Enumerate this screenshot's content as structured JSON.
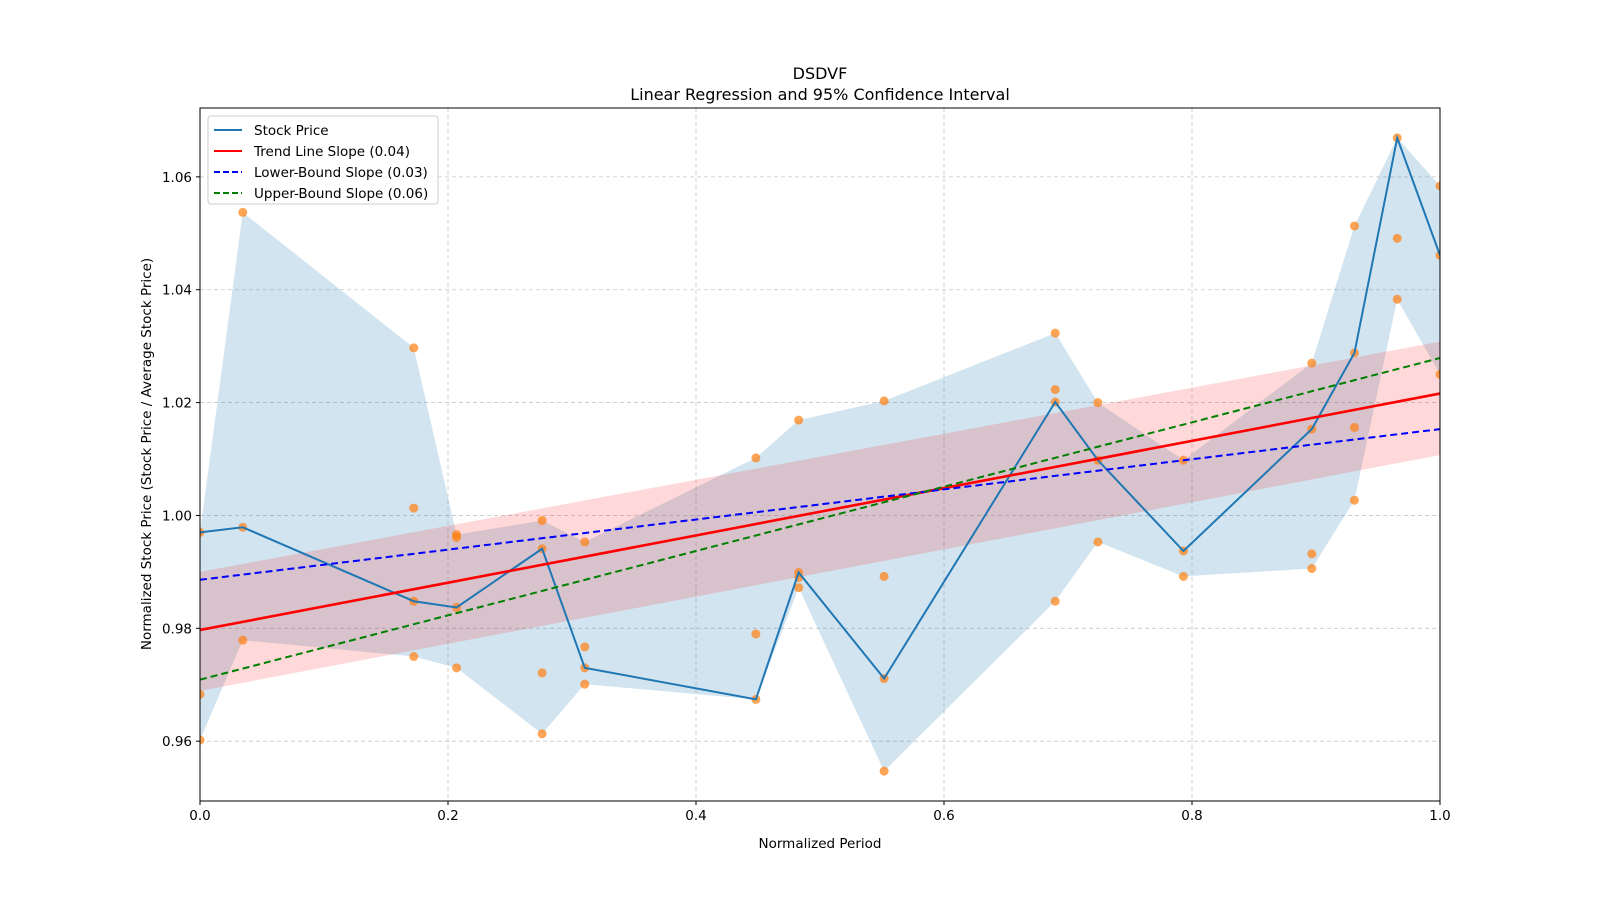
{
  "chart_data": {
    "type": "line",
    "title": "DSDVF",
    "subtitle": "Linear Regression and 95% Confidence Interval",
    "xlabel": "Normalized Period",
    "ylabel": "Normalized Stock Price (Stock Price / Average Stock Price)",
    "xlim": [
      0.0,
      1.0
    ],
    "ylim": [
      0.9494,
      1.0722
    ],
    "grid": true,
    "legend_position": "top-left",
    "x_ticks": [
      "0.0",
      "0.2",
      "0.4",
      "0.6",
      "0.8",
      "1.0"
    ],
    "x_tick_values": [
      0.0,
      0.2,
      0.4,
      0.6,
      0.8,
      1.0
    ],
    "y_ticks": [
      "0.96",
      "0.98",
      "1.00",
      "1.02",
      "1.04",
      "1.06"
    ],
    "y_tick_values": [
      0.96,
      0.98,
      1.0,
      1.02,
      1.04,
      1.06
    ],
    "legend": [
      {
        "label": "Stock Price",
        "color": "#1f77b4",
        "style": "solid"
      },
      {
        "label": "Trend Line Slope (0.04)",
        "color": "#ff0000",
        "style": "solid"
      },
      {
        "label": "Lower-Bound Slope (0.03)",
        "color": "#0000ff",
        "style": "dashed"
      },
      {
        "label": "Upper-Bound Slope (0.06)",
        "color": "#008000",
        "style": "dashed"
      }
    ],
    "colors": {
      "stock": "#1f77b4",
      "band": "#1f77b4",
      "scatter": "#ff7f0e",
      "trend": "#ff0000",
      "trend_ci": "#ff9999",
      "lower": "#0000ff",
      "upper": "#008000"
    },
    "stock_price": {
      "x": [
        0.0,
        0.0345,
        0.1724,
        0.2069,
        0.2759,
        0.3103,
        0.4483,
        0.4828,
        0.5517,
        0.6897,
        0.7241,
        0.7931,
        0.8966,
        0.931,
        0.9655,
        1.0
      ],
      "y": [
        0.997,
        0.9979,
        0.9848,
        0.9837,
        0.9941,
        0.973,
        0.9674,
        0.9899,
        0.9711,
        1.0201,
        1.0098,
        0.9937,
        1.0153,
        1.0288,
        1.0669,
        1.0461
      ]
    },
    "scatter_points": [
      [
        0.0,
        0.997
      ],
      [
        0.0,
        0.9683
      ],
      [
        0.0,
        0.9602
      ],
      [
        0.0345,
        1.0537
      ],
      [
        0.0345,
        0.9979
      ],
      [
        0.0345,
        0.9779
      ],
      [
        0.1724,
        1.0297
      ],
      [
        0.1724,
        1.0013
      ],
      [
        0.1724,
        0.9848
      ],
      [
        0.1724,
        0.975
      ],
      [
        0.2069,
        0.9966
      ],
      [
        0.2069,
        0.9961
      ],
      [
        0.2069,
        0.9837
      ],
      [
        0.2069,
        0.973
      ],
      [
        0.2759,
        0.9991
      ],
      [
        0.2759,
        0.9941
      ],
      [
        0.2759,
        0.9721
      ],
      [
        0.2759,
        0.9613
      ],
      [
        0.3103,
        0.9953
      ],
      [
        0.3103,
        0.9767
      ],
      [
        0.3103,
        0.973
      ],
      [
        0.3103,
        0.9701
      ],
      [
        0.4483,
        1.0102
      ],
      [
        0.4483,
        0.979
      ],
      [
        0.4483,
        0.9674
      ],
      [
        0.4828,
        1.0169
      ],
      [
        0.4828,
        0.9899
      ],
      [
        0.4828,
        0.989
      ],
      [
        0.4828,
        0.9872
      ],
      [
        0.5517,
        1.0203
      ],
      [
        0.5517,
        0.9892
      ],
      [
        0.5517,
        0.9711
      ],
      [
        0.5517,
        0.9547
      ],
      [
        0.6897,
        1.0323
      ],
      [
        0.6897,
        1.0223
      ],
      [
        0.6897,
        1.0201
      ],
      [
        0.6897,
        0.9848
      ],
      [
        0.7241,
        1.02
      ],
      [
        0.7241,
        1.0098
      ],
      [
        0.7241,
        0.9953
      ],
      [
        0.7931,
        1.0098
      ],
      [
        0.7931,
        0.9937
      ],
      [
        0.7931,
        0.9892
      ],
      [
        0.8966,
        1.027
      ],
      [
        0.8966,
        1.0153
      ],
      [
        0.8966,
        0.9932
      ],
      [
        0.8966,
        0.9906
      ],
      [
        0.931,
        1.0513
      ],
      [
        0.931,
        1.0288
      ],
      [
        0.931,
        1.0156
      ],
      [
        0.931,
        1.0027
      ],
      [
        0.9655,
        1.0669
      ],
      [
        0.9655,
        1.0491
      ],
      [
        0.9655,
        1.0383
      ],
      [
        1.0,
        1.0584
      ],
      [
        1.0,
        1.0461
      ],
      [
        1.0,
        1.025
      ]
    ],
    "trend_line": {
      "slope": 0.04,
      "x": [
        0.0,
        1.0
      ],
      "y": [
        0.9797,
        1.0216
      ]
    },
    "trend_ci": {
      "x": [
        0.0,
        1.0
      ],
      "lower": [
        0.9689,
        1.0107
      ],
      "upper": [
        0.99,
        1.0308
      ]
    },
    "lower_bound_line": {
      "slope": 0.03,
      "x": [
        0.0,
        1.0
      ],
      "y": [
        0.9886,
        1.0153
      ]
    },
    "upper_bound_line": {
      "slope": 0.06,
      "x": [
        0.0,
        1.0
      ],
      "y": [
        0.9709,
        1.0279
      ]
    }
  }
}
